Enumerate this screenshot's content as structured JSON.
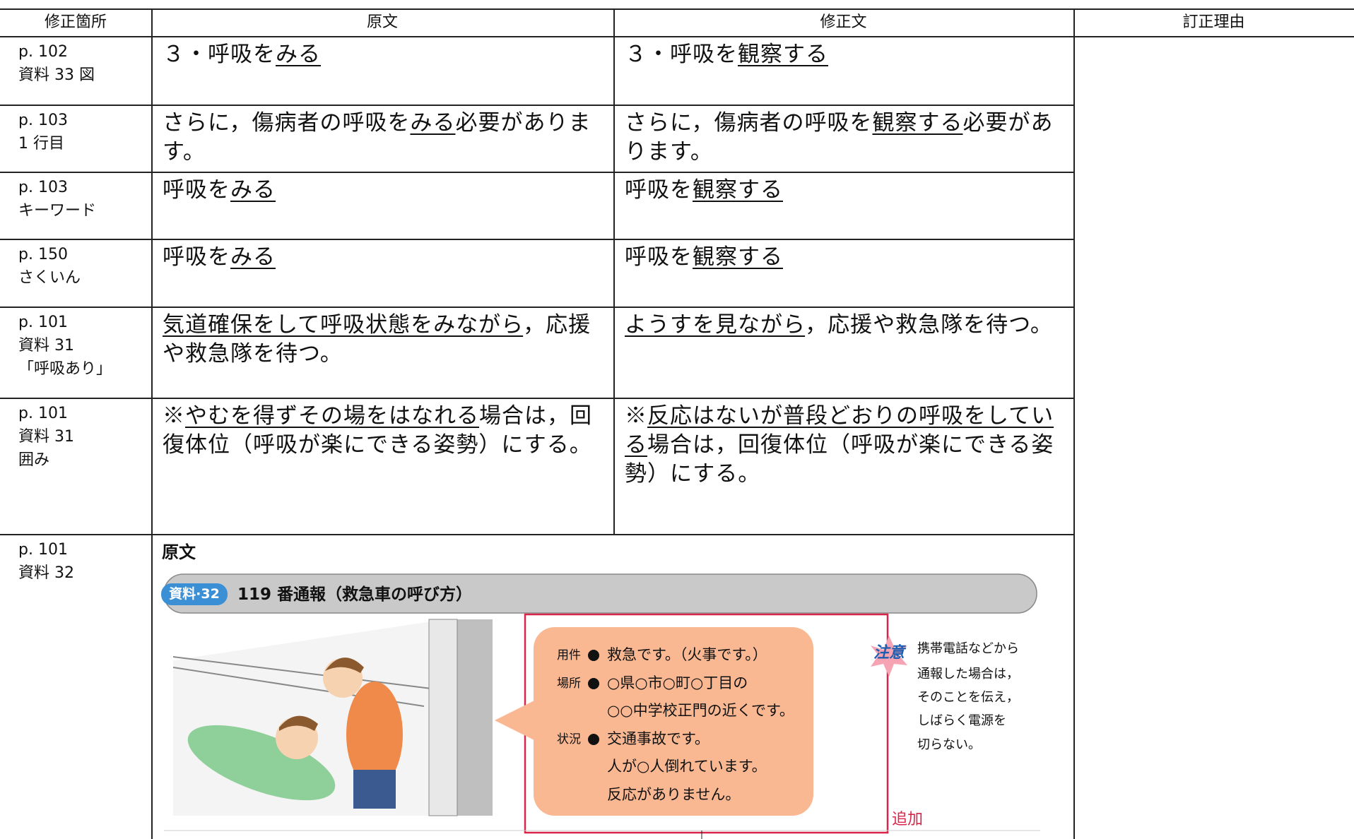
{
  "header": [
    "修正箇所",
    "原文",
    "修正文",
    "訂正理由"
  ],
  "rows": [
    {
      "location": [
        "p. 102",
        "資料 33 図"
      ],
      "original": [
        "３・呼吸を",
        {
          "text": "みる",
          "underline": true
        }
      ],
      "revised": [
        "３・呼吸を",
        {
          "text": "観察する",
          "underline": true
        }
      ]
    },
    {
      "location": [
        "p. 103",
        "1 行目"
      ],
      "original": [
        "さらに，傷病者の呼吸を",
        {
          "text": "みる",
          "underline": true
        },
        "必要があります。"
      ],
      "revised": [
        "さらに，傷病者の呼吸を",
        {
          "text": "観察する",
          "underline": true
        },
        "必要があります。"
      ]
    },
    {
      "location": [
        "p. 103",
        "キーワード"
      ],
      "original": [
        "呼吸を",
        {
          "text": "みる",
          "underline": true
        }
      ],
      "revised": [
        "呼吸を",
        {
          "text": "観察する",
          "underline": true
        }
      ]
    },
    {
      "location": [
        "p. 150",
        "さくいん"
      ],
      "original": [
        "呼吸を",
        {
          "text": "みる",
          "underline": true
        }
      ],
      "revised": [
        "呼吸を",
        {
          "text": "観察する",
          "underline": true
        }
      ]
    },
    {
      "location": [
        "p. 101",
        "資料 31",
        "「呼吸あり」"
      ],
      "original": [
        {
          "text": "気道確保をして呼吸状態をみながら",
          "underline": true
        },
        "，応援や救急隊を待つ。"
      ],
      "revised": [
        {
          "text": "ようすを見ながら",
          "underline": true
        },
        "，応援や救急隊を待つ。"
      ]
    },
    {
      "location": [
        "p. 101",
        "資料 31",
        "囲み"
      ],
      "original": [
        "※",
        {
          "text": "やむを得ずその場をはなれる",
          "underline": true
        },
        "場合は，回復体位（呼吸が楽にできる姿勢）にする。"
      ],
      "revised": [
        "※",
        {
          "text": "反応はないが普段どおりの呼吸をしている",
          "underline": true
        },
        "場合は，回復体位（呼吸が楽にできる姿勢）にする。"
      ]
    }
  ],
  "figure_row": {
    "location": [
      "p. 101",
      "資料 32"
    ],
    "heading": "原文",
    "badge": "資料·32",
    "title": "119 番通報（救急車の呼び方）",
    "bubble": [
      {
        "label": "用件",
        "lines": [
          "救急です。（火事です。）"
        ]
      },
      {
        "label": "場所",
        "lines": [
          "○県○市○町○丁目の",
          "○○中学校正門の近くです。"
        ]
      },
      {
        "label": "状況",
        "lines": [
          "交通事故です。",
          "人が○人倒れています。",
          "反応がありません。"
        ]
      }
    ],
    "note_label": "注意",
    "note_lines": [
      "携帯電話などから",
      "通報した場合は，",
      "そのことを伝え，",
      "しばらく電源を",
      "切らない。"
    ],
    "added": "追加"
  }
}
